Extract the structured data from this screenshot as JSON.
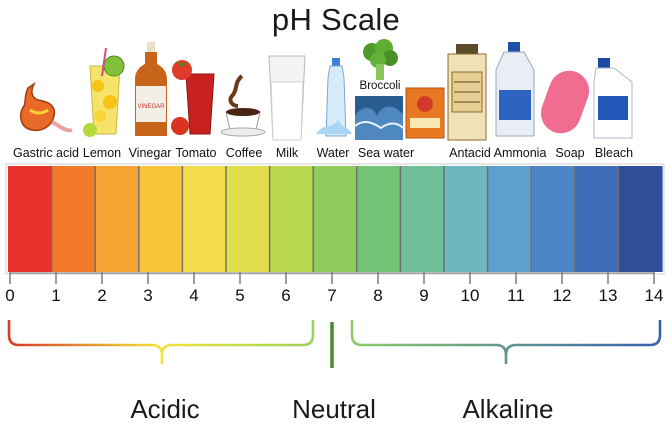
{
  "title": "pH Scale",
  "items": [
    {
      "label": "Gastric acid",
      "icon": "stomach-icon"
    },
    {
      "label": "Lemon",
      "icon": "lemon-drink-icon"
    },
    {
      "label": "Vinegar",
      "icon": "vinegar-bottle-icon"
    },
    {
      "label": "Tomato",
      "icon": "tomato-juice-icon"
    },
    {
      "label": "Coffee",
      "icon": "coffee-cup-icon"
    },
    {
      "label": "Milk",
      "icon": "milk-glass-icon"
    },
    {
      "label": "Water",
      "icon": "water-bottle-icon"
    },
    {
      "label": "Sea water",
      "icon": "sea-wave-icon"
    },
    {
      "label": "Antacid",
      "icon": "antacid-box-icon"
    },
    {
      "label": "Ammonia",
      "icon": "ammonia-jug-icon"
    },
    {
      "label": "Soap",
      "icon": "soap-bar-icon"
    },
    {
      "label": "Bleach",
      "icon": "bleach-bottle-icon"
    }
  ],
  "broccoli_label": "Broccoli",
  "baking_soda_icon": "baking-soda-box-icon",
  "scale_numbers": [
    "0",
    "1",
    "2",
    "3",
    "4",
    "5",
    "6",
    "7",
    "8",
    "9",
    "10",
    "11",
    "12",
    "13",
    "14"
  ],
  "segment_colors": [
    "#e8312a",
    "#f27a2a",
    "#f5a333",
    "#f7c43a",
    "#f2dc49",
    "#e2dd4d",
    "#b9d84f",
    "#8dcb5c",
    "#74c376",
    "#6fbf99",
    "#6eb5c0",
    "#5f9fd0",
    "#4d86c7",
    "#3f6db8",
    "#2f4f9a"
  ],
  "groups": {
    "acidic": "Acidic",
    "neutral": "Neutral",
    "alkaline": "Alkaline"
  },
  "bracket_colors": {
    "acidic_start": "#d63a2a",
    "acidic_mid": "#f0e43a",
    "acidic_end": "#9dd25a",
    "neutral": "#4b8a2e",
    "alkaline_start": "#8ccc6a",
    "alkaline_end": "#3a5fb0"
  }
}
